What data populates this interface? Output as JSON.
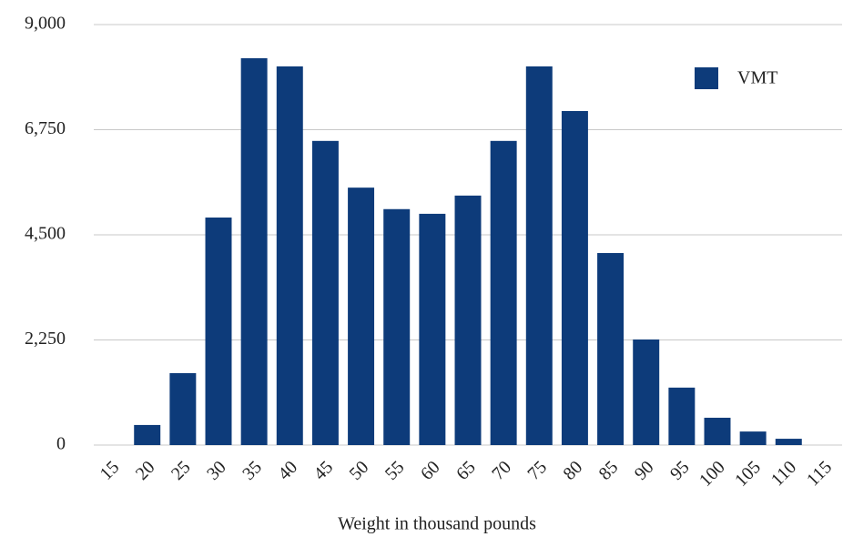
{
  "chart_data": {
    "type": "bar",
    "x_label": "Weight in thousand pounds",
    "categories": [
      "15",
      "20",
      "25",
      "30",
      "35",
      "40",
      "45",
      "50",
      "55",
      "60",
      "65",
      "70",
      "75",
      "80",
      "85",
      "90",
      "95",
      "100",
      "105",
      "110",
      "115"
    ],
    "series": [
      {
        "name": "VMT",
        "color": "#0d3b7a",
        "values": [
          0,
          430,
          1540,
          4870,
          8280,
          8105,
          6510,
          5510,
          5050,
          4950,
          5340,
          6510,
          8105,
          7150,
          4110,
          2260,
          1230,
          585,
          290,
          135,
          0
        ]
      }
    ],
    "ylim": [
      0,
      9000
    ],
    "yticks": [
      0,
      {
        "value": 2250,
        "label": "2,250"
      },
      {
        "value": 4500,
        "label": "4,500"
      },
      {
        "value": 6750,
        "label": "6,750"
      },
      {
        "value": 9000,
        "label": "9,000"
      }
    ],
    "grid": true,
    "legend": "top-right"
  }
}
